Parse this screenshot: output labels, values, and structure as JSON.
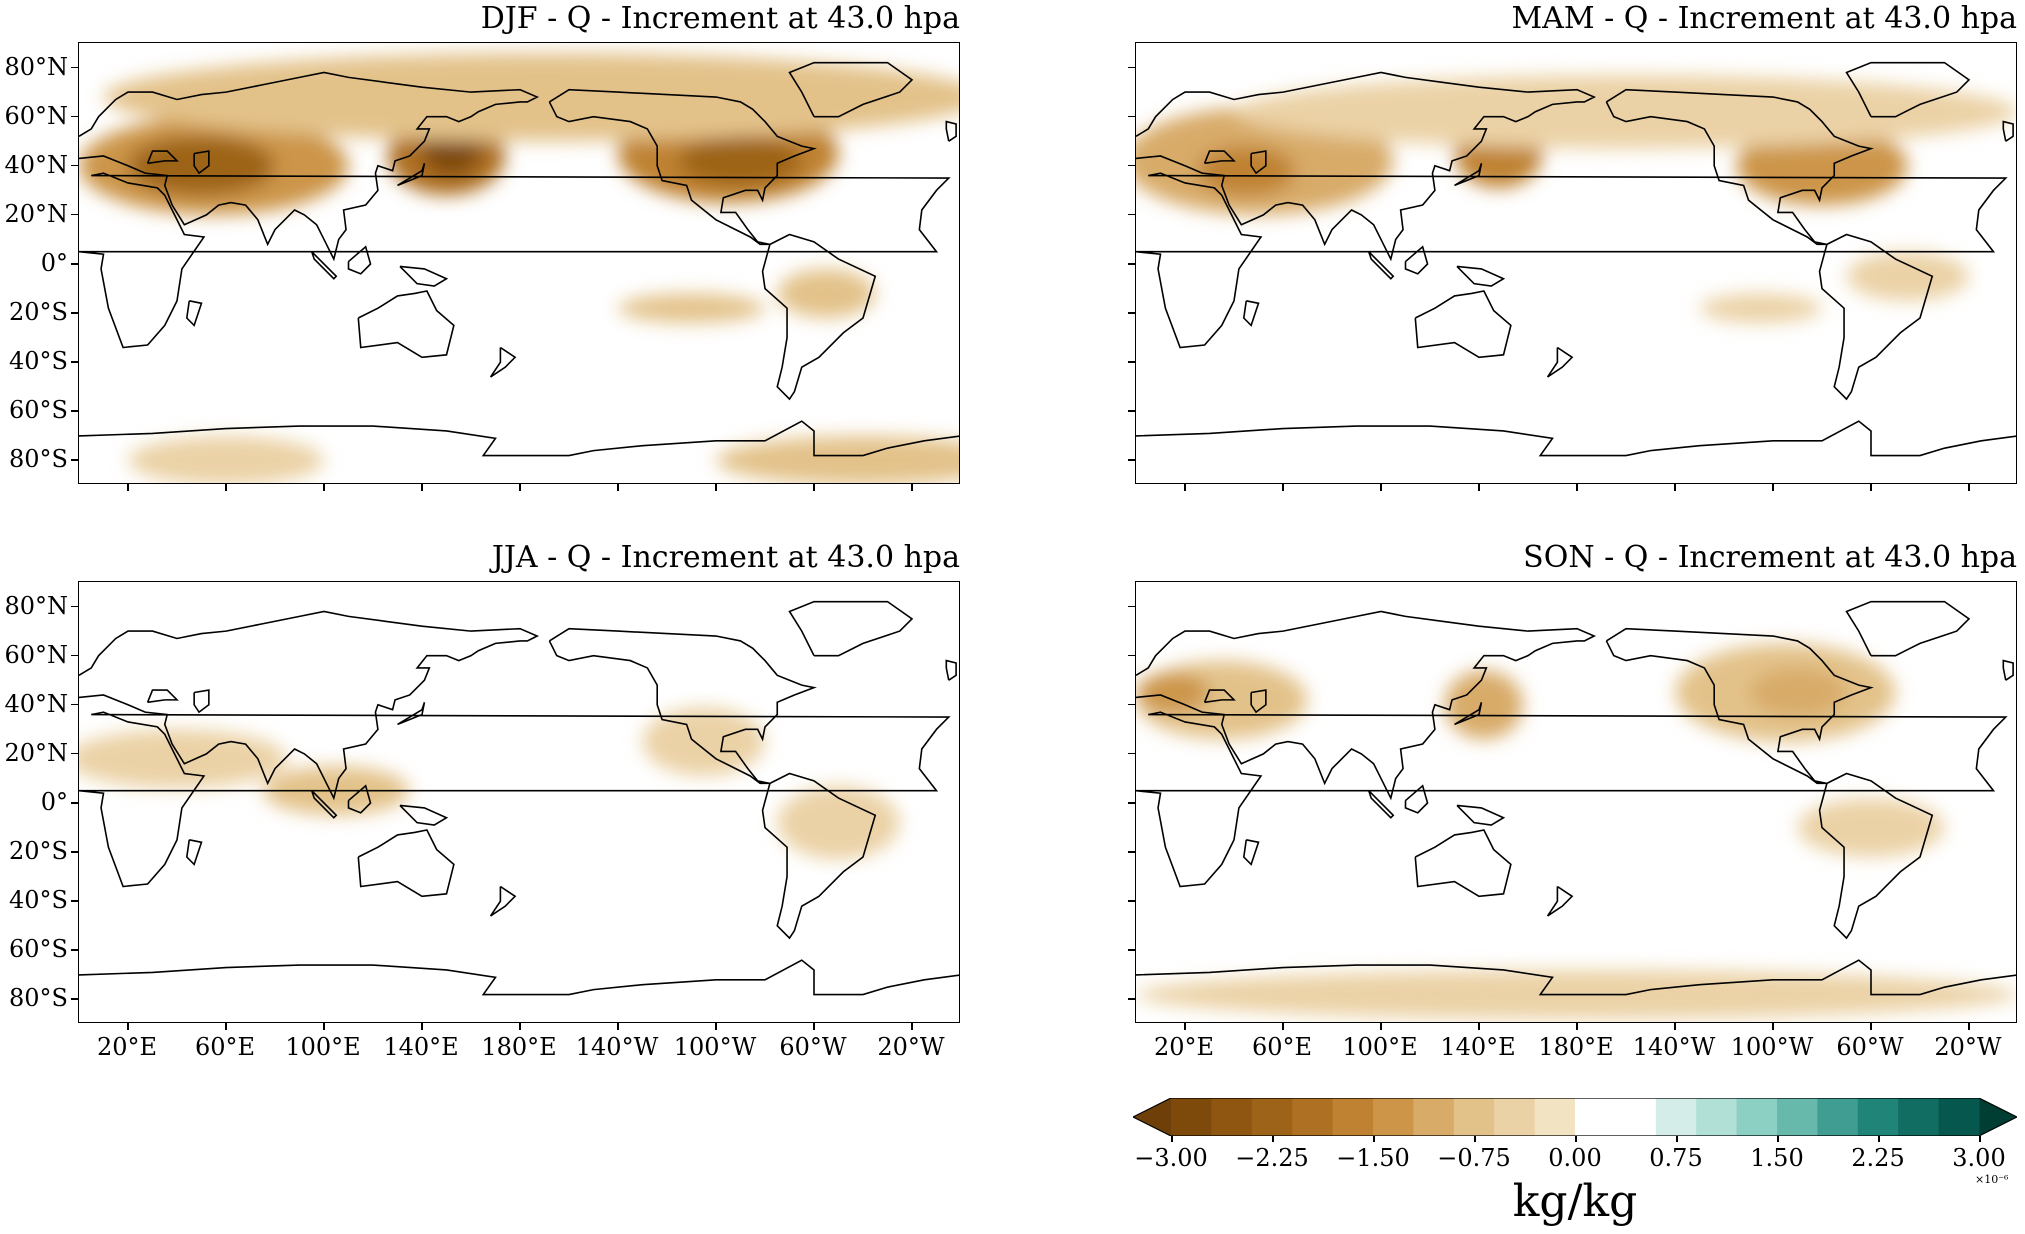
{
  "panels": [
    {
      "title": "DJF - Q - Increment at 43.0 hpa",
      "season": "DJF"
    },
    {
      "title": "MAM - Q - Increment at 43.0 hpa",
      "season": "MAM"
    },
    {
      "title": "JJA - Q - Increment at 43.0 hpa",
      "season": "JJA"
    },
    {
      "title": "SON - Q - Increment at 43.0 hpa",
      "season": "SON"
    }
  ],
  "lat_ticks": [
    "80°N",
    "60°N",
    "40°N",
    "20°N",
    "0°",
    "20°S",
    "40°S",
    "60°S",
    "80°S"
  ],
  "lon_ticks": [
    "20°E",
    "60°E",
    "100°E",
    "140°E",
    "180°E",
    "140°W",
    "100°W",
    "60°W",
    "20°W"
  ],
  "colorbar": {
    "tick_labels": [
      "−3.00",
      "−2.25",
      "−1.50",
      "−0.75",
      "0.00",
      "0.75",
      "1.50",
      "2.25",
      "3.00"
    ],
    "unit": "kg/kg",
    "exponent": "×10⁻⁶",
    "colors": [
      "#6e3f08",
      "#7e4a0c",
      "#8e5611",
      "#9d6318",
      "#ae7023",
      "#bf8233",
      "#cc9548",
      "#d8ab69",
      "#e3c28a",
      "#ebd2a6",
      "#f2e3c3",
      "#ffffff",
      "#d4ede8",
      "#b0e0d6",
      "#8ccfc3",
      "#67b9ab",
      "#3f9d91",
      "#218479",
      "#116c62",
      "#06574d",
      "#003d33"
    ]
  },
  "regions": {
    "DJF": [
      {
        "lon": 55,
        "lat": 40,
        "rlon": 55,
        "rlat": 20,
        "level": 6
      },
      {
        "lon": 50,
        "lat": 40,
        "rlon": 30,
        "rlat": 12,
        "level": 3
      },
      {
        "lon": 150,
        "lat": 44,
        "rlon": 24,
        "rlat": 16,
        "level": 4
      },
      {
        "lon": 152,
        "lat": 46,
        "rlon": 12,
        "rlat": 10,
        "level": 1
      },
      {
        "lon": 265,
        "lat": 45,
        "rlon": 45,
        "rlat": 20,
        "level": 5
      },
      {
        "lon": 270,
        "lat": 42,
        "rlon": 25,
        "rlat": 10,
        "level": 3
      },
      {
        "lon": 190,
        "lat": 68,
        "rlon": 180,
        "rlat": 18,
        "level": 8
      },
      {
        "lon": 250,
        "lat": -18,
        "rlon": 30,
        "rlat": 6,
        "level": 8
      },
      {
        "lon": 305,
        "lat": -12,
        "rlon": 20,
        "rlat": 10,
        "level": 8
      },
      {
        "lon": 320,
        "lat": -80,
        "rlon": 60,
        "rlat": 10,
        "level": 8
      },
      {
        "lon": 60,
        "lat": -80,
        "rlon": 40,
        "rlat": 10,
        "level": 9
      }
    ],
    "MAM": [
      {
        "lon": 50,
        "lat": 42,
        "rlon": 55,
        "rlat": 22,
        "level": 7
      },
      {
        "lon": 45,
        "lat": 38,
        "rlon": 20,
        "rlat": 10,
        "level": 5
      },
      {
        "lon": 148,
        "lat": 45,
        "rlon": 18,
        "rlat": 14,
        "level": 5
      },
      {
        "lon": 280,
        "lat": 40,
        "rlon": 35,
        "rlat": 16,
        "level": 6
      },
      {
        "lon": 200,
        "lat": 62,
        "rlon": 160,
        "rlat": 15,
        "level": 9
      },
      {
        "lon": 255,
        "lat": -18,
        "rlon": 25,
        "rlat": 6,
        "level": 9
      },
      {
        "lon": 315,
        "lat": -5,
        "rlon": 25,
        "rlat": 10,
        "level": 9
      }
    ],
    "JJA": [
      {
        "lon": 40,
        "lat": 18,
        "rlon": 45,
        "rlat": 12,
        "level": 9
      },
      {
        "lon": 105,
        "lat": 5,
        "rlon": 30,
        "rlat": 10,
        "level": 8
      },
      {
        "lon": 255,
        "lat": 25,
        "rlon": 25,
        "rlat": 14,
        "level": 9
      },
      {
        "lon": 310,
        "lat": -8,
        "rlon": 25,
        "rlat": 15,
        "level": 9
      }
    ],
    "SON": [
      {
        "lon": 35,
        "lat": 42,
        "rlon": 35,
        "rlat": 16,
        "level": 8
      },
      {
        "lon": 15,
        "lat": 45,
        "rlon": 15,
        "rlat": 8,
        "level": 6
      },
      {
        "lon": 142,
        "lat": 40,
        "rlon": 16,
        "rlat": 14,
        "level": 7
      },
      {
        "lon": 265,
        "lat": 45,
        "rlon": 45,
        "rlat": 20,
        "level": 8
      },
      {
        "lon": 270,
        "lat": 45,
        "rlon": 20,
        "rlat": 10,
        "level": 7
      },
      {
        "lon": 300,
        "lat": -10,
        "rlon": 30,
        "rlat": 12,
        "level": 9
      },
      {
        "lon": 180,
        "lat": -78,
        "rlon": 180,
        "rlat": 10,
        "level": 9
      }
    ]
  }
}
